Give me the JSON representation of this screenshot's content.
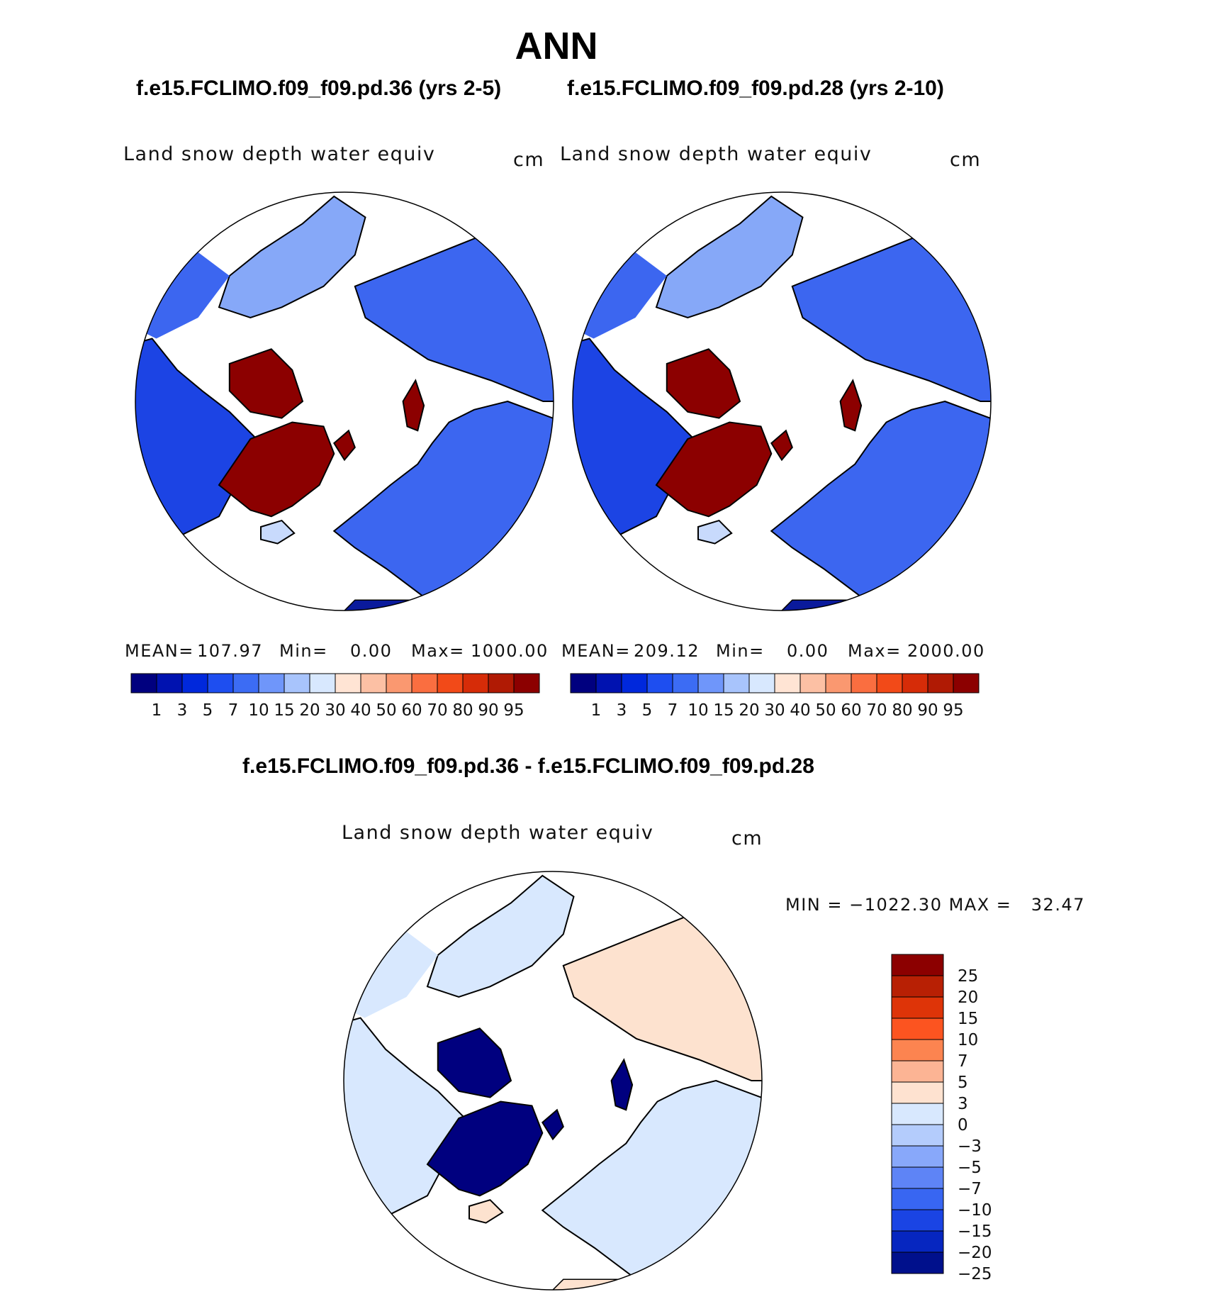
{
  "figure": {
    "title": "ANN",
    "left_case": "f.e15.FCLIMO.f09_f09.pd.36 (yrs 2-5)",
    "right_case": "f.e15.FCLIMO.f09_f09.pd.28 (yrs 2-10)",
    "diff_case": "f.e15.FCLIMO.f09_f09.pd.36 - f.e15.FCLIMO.f09_f09.pd.28"
  },
  "panels": [
    {
      "variable": "Land snow depth water equiv",
      "units": "cm",
      "stats": {
        "mean_label": "MEAN=",
        "mean": "107.97",
        "min_label": "Min=",
        "min": "0.00",
        "max_label": "Max=",
        "max": "1000.00"
      }
    },
    {
      "variable": "Land snow depth water equiv",
      "units": "cm",
      "stats": {
        "mean_label": "MEAN=",
        "mean": "209.12",
        "min_label": "Min=",
        "min": "0.00",
        "max_label": "Max=",
        "max": "2000.00"
      }
    },
    {
      "variable": "Land snow depth water equiv",
      "units": "cm",
      "stats_text": "MIN = −1022.30 MAX =   32.47"
    }
  ],
  "colorbar_abs": {
    "labels": [
      "1",
      "3",
      "5",
      "7",
      "10",
      "15",
      "20",
      "30",
      "40",
      "50",
      "60",
      "70",
      "80",
      "90",
      "95"
    ],
    "colors": [
      "#00007f",
      "#0012b0",
      "#0028dc",
      "#1e4ef0",
      "#3c6cf4",
      "#6f96fa",
      "#a8c4fc",
      "#d8e8fe",
      "#ffe4d4",
      "#fcc0a4",
      "#fa9870",
      "#fa6e40",
      "#f24a18",
      "#d62c08",
      "#b01a04",
      "#8c0000"
    ]
  },
  "colorbar_diff": {
    "labels": [
      "25",
      "20",
      "15",
      "10",
      "7",
      "5",
      "3",
      "0",
      "−3",
      "−5",
      "−7",
      "−10",
      "−15",
      "−20",
      "−25"
    ],
    "colors": [
      "#8c0000",
      "#b82004",
      "#de3408",
      "#fc5420",
      "#fc8450",
      "#fcb494",
      "#fee2d0",
      "#d8e8fe",
      "#b4ccfc",
      "#88a8fa",
      "#5e84f6",
      "#3866f2",
      "#1a44e4",
      "#0626c0",
      "#00108c"
    ]
  },
  "map_colors": {
    "ocean": "#ffffff",
    "deep_blue": "#1c44e4",
    "mid_blue": "#3c66f0",
    "light_blue": "#86a8f8",
    "pale_blue": "#c8dafc",
    "dark_blue": "#0a1a9c",
    "greenland_abs": "#8c0000",
    "greenland_diff": "#00007f",
    "diff_pos": "#fde2cf",
    "diff_neg": "#d8e8fe"
  }
}
